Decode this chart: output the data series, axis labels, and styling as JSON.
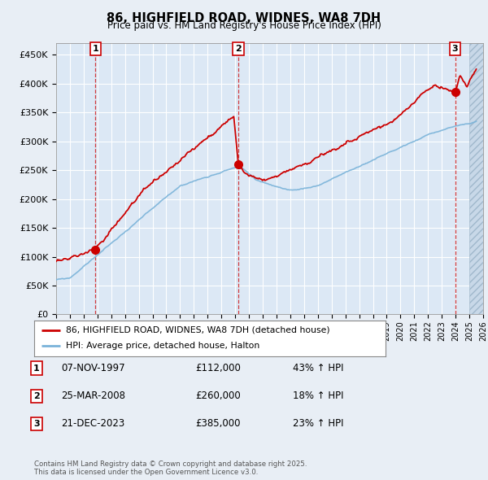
{
  "title": "86, HIGHFIELD ROAD, WIDNES, WA8 7DH",
  "subtitle": "Price paid vs. HM Land Registry's House Price Index (HPI)",
  "background_color": "#e8eef5",
  "plot_bg_color": "#dce8f5",
  "grid_color": "#ffffff",
  "hpi_line_color": "#7ab3d9",
  "price_line_color": "#cc0000",
  "legend_label_price": "86, HIGHFIELD ROAD, WIDNES, WA8 7DH (detached house)",
  "legend_label_hpi": "HPI: Average price, detached house, Halton",
  "sales": [
    {
      "num": 1,
      "date_x": 1997.85,
      "price": 112000,
      "label": "07-NOV-1997",
      "pct": "43%",
      "dir": "↑"
    },
    {
      "num": 2,
      "date_x": 2008.23,
      "price": 260000,
      "label": "25-MAR-2008",
      "pct": "18%",
      "dir": "↑"
    },
    {
      "num": 3,
      "date_x": 2023.97,
      "price": 385000,
      "label": "21-DEC-2023",
      "pct": "23%",
      "dir": "↑"
    }
  ],
  "footer": "Contains HM Land Registry data © Crown copyright and database right 2025.\nThis data is licensed under the Open Government Licence v3.0.",
  "xlim": [
    1995,
    2026
  ],
  "ylim": [
    0,
    470000
  ],
  "yticks": [
    0,
    50000,
    100000,
    150000,
    200000,
    250000,
    300000,
    350000,
    400000,
    450000
  ],
  "xticks": [
    1995,
    1996,
    1997,
    1998,
    1999,
    2000,
    2001,
    2002,
    2003,
    2004,
    2005,
    2006,
    2007,
    2008,
    2009,
    2010,
    2011,
    2012,
    2013,
    2014,
    2015,
    2016,
    2017,
    2018,
    2019,
    2020,
    2021,
    2022,
    2023,
    2024,
    2025,
    2026
  ]
}
